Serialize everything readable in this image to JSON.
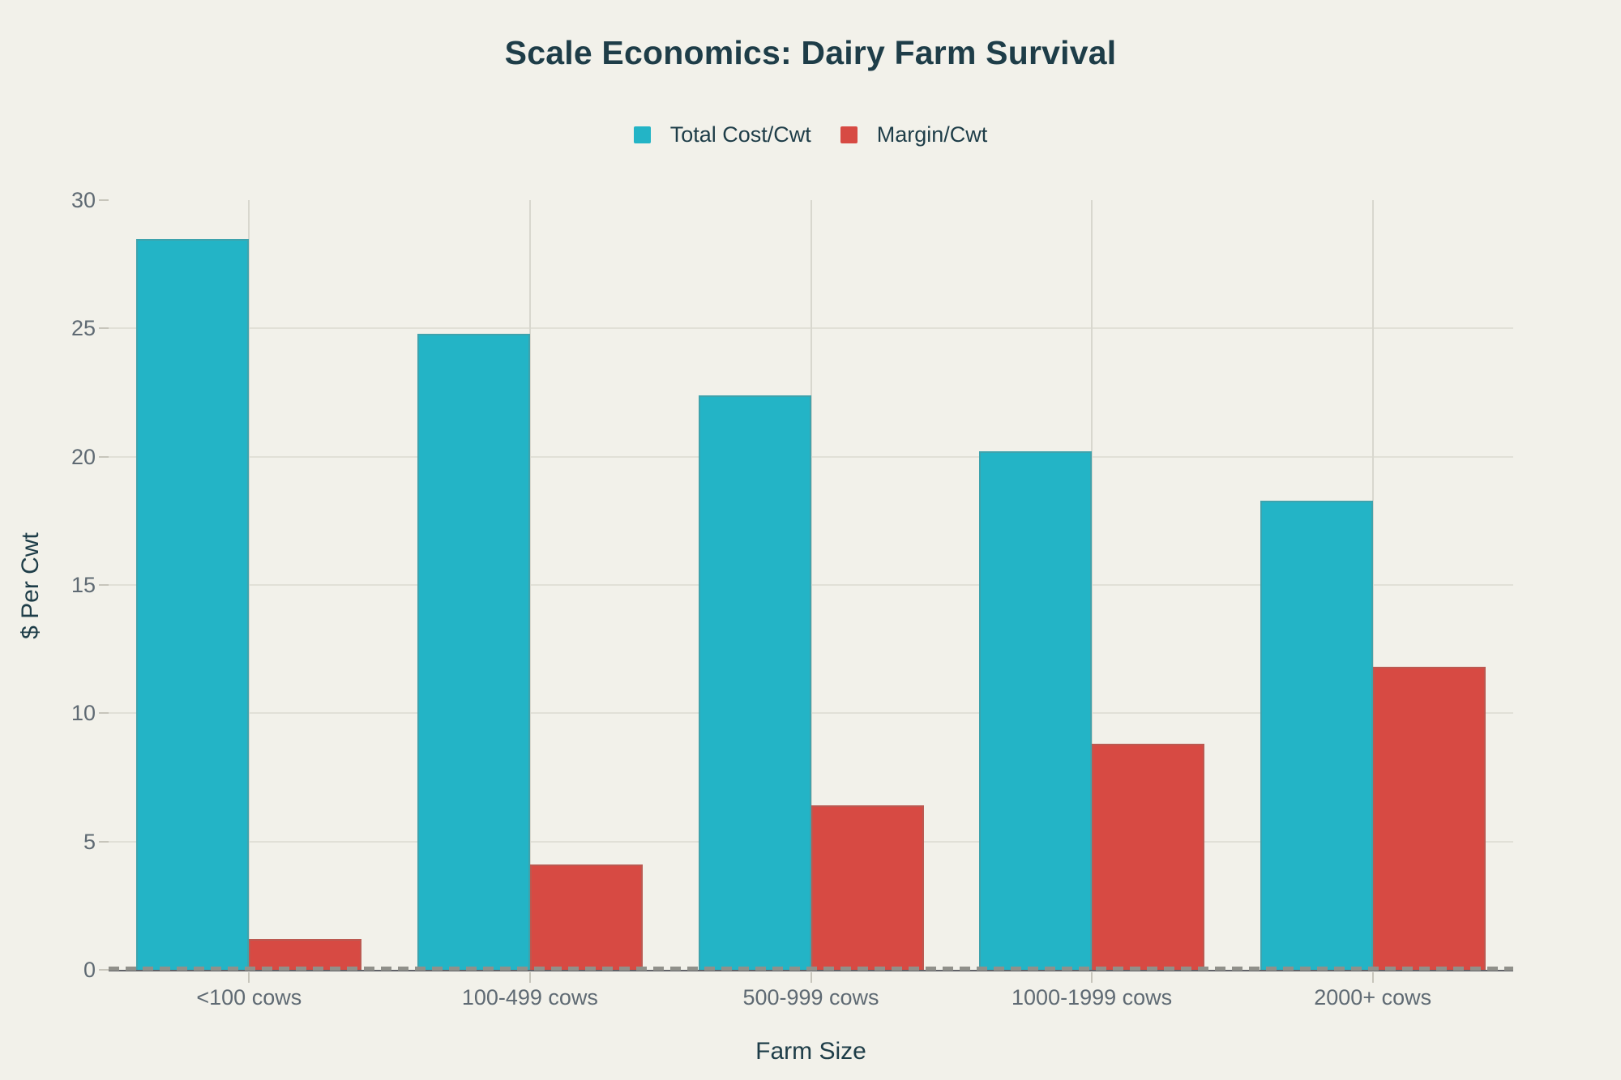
{
  "chart_data": {
    "type": "bar",
    "title": "Scale Economics: Dairy Farm Survival",
    "categories": [
      "<100 cows",
      "100-499 cows",
      "500-999 cows",
      "1000-1999 cows",
      "2000+ cows"
    ],
    "series": [
      {
        "name": "Total Cost/Cwt",
        "color": "#23b4c6",
        "values": [
          28.5,
          24.8,
          22.4,
          20.2,
          18.3
        ]
      },
      {
        "name": "Margin/Cwt",
        "color": "#d74a43",
        "values": [
          1.2,
          4.1,
          6.4,
          8.8,
          11.8
        ]
      }
    ],
    "xlabel": "Farm Size",
    "ylabel": "$ Per Cwt",
    "ylim": [
      0,
      30
    ],
    "yticks": [
      0,
      5,
      10,
      15,
      20,
      25,
      30
    ],
    "grid": true,
    "legend_position": "top"
  },
  "colors": {
    "background": "#f2f1ea",
    "heading_text": "#1e3d48",
    "tick_text": "#5f6a73",
    "h_gridline": "#e1e0d7",
    "v_gridline": "#d8d7ce",
    "baseline": "#606167",
    "baseline_dash": "#90908a",
    "tick_mark": "#c7c5bb"
  }
}
